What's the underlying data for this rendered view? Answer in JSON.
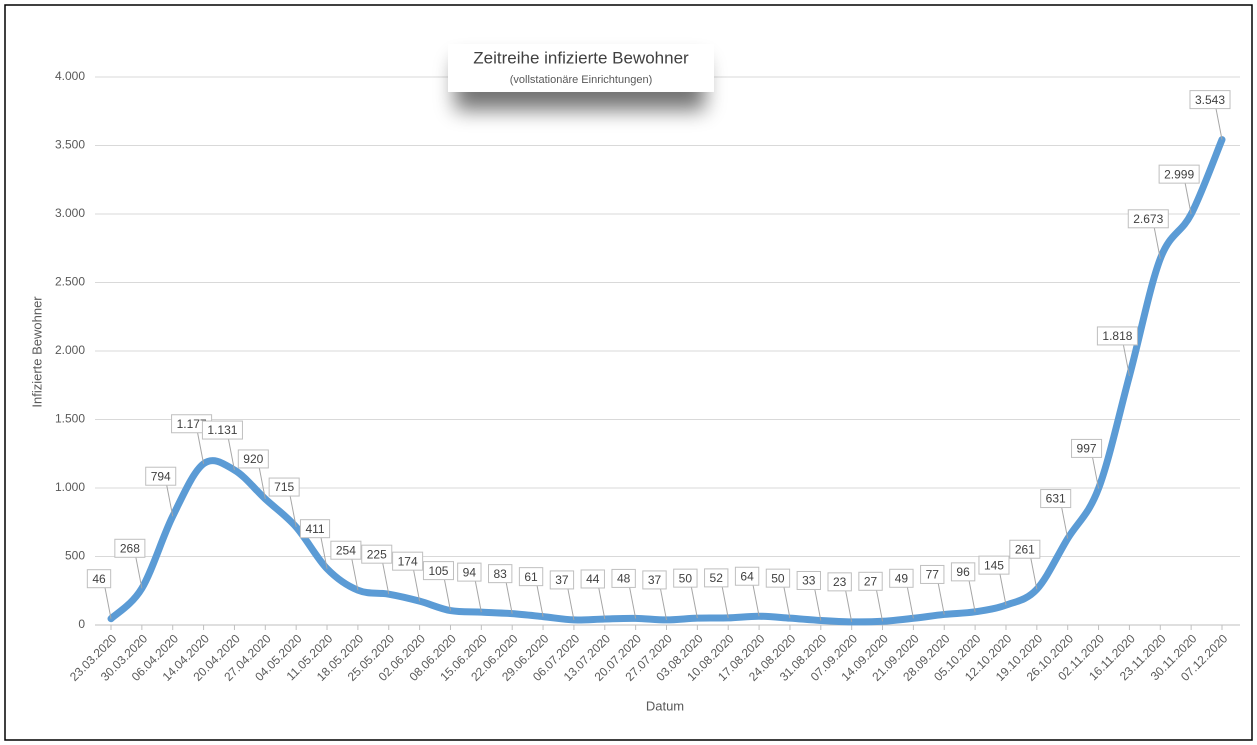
{
  "chart_data": {
    "type": "line",
    "title": "Zeitreihe infizierte Bewohner",
    "subtitle": "(vollstationäre Einrichtungen)",
    "x_label": "Datum",
    "y_label": "Infizierte Bewohner",
    "categories": [
      "23.03.2020",
      "30.03.2020",
      "06.04.2020",
      "14.04.2020",
      "20.04.2020",
      "27.04.2020",
      "04.05.2020",
      "11.05.2020",
      "18.05.2020",
      "25.05.2020",
      "02.06.2020",
      "08.06.2020",
      "15.06.2020",
      "22.06.2020",
      "29.06.2020",
      "06.07.2020",
      "13.07.2020",
      "20.07.2020",
      "27.07.2020",
      "03.08.2020",
      "10.08.2020",
      "17.08.2020",
      "24.08.2020",
      "31.08.2020",
      "07.09.2020",
      "14.09.2020",
      "21.09.2020",
      "28.09.2020",
      "05.10.2020",
      "12.10.2020",
      "19.10.2020",
      "26.10.2020",
      "02.11.2020",
      "16.11.2020",
      "23.11.2020",
      "30.11.2020",
      "07.12.2020"
    ],
    "series": [
      {
        "name": "Infizierte Bewohner",
        "color": "#5b9bd5",
        "values": [
          46,
          268,
          794,
          1177,
          1131,
          920,
          715,
          411,
          254,
          225,
          174,
          105,
          94,
          83,
          61,
          37,
          44,
          48,
          37,
          50,
          52,
          64,
          50,
          33,
          23,
          27,
          49,
          77,
          96,
          145,
          261,
          631,
          997,
          1818,
          2673,
          2999,
          3543
        ],
        "value_labels": [
          "46",
          "268",
          "794",
          "1.177",
          "1.131",
          "920",
          "715",
          "411",
          "254",
          "225",
          "174",
          "105",
          "94",
          "83",
          "61",
          "37",
          "44",
          "48",
          "37",
          "50",
          "52",
          "64",
          "50",
          "33",
          "23",
          "27",
          "49",
          "77",
          "96",
          "145",
          "261",
          "631",
          "997",
          "1.818",
          "2.673",
          "2.999",
          "3.543"
        ]
      }
    ],
    "ylim": [
      0,
      4000
    ],
    "yticks": [
      0,
      500,
      {
        "value": 1000,
        "label": "1.000"
      },
      {
        "value": 1500,
        "label": "1.500"
      },
      {
        "value": 2000,
        "label": "2.000"
      },
      {
        "value": 2500,
        "label": "2.500"
      },
      {
        "value": 3000,
        "label": "3.000"
      },
      {
        "value": 3500,
        "label": "3.500"
      },
      {
        "value": 4000,
        "label": "4.000"
      }
    ],
    "grid": true,
    "smooth": true
  }
}
